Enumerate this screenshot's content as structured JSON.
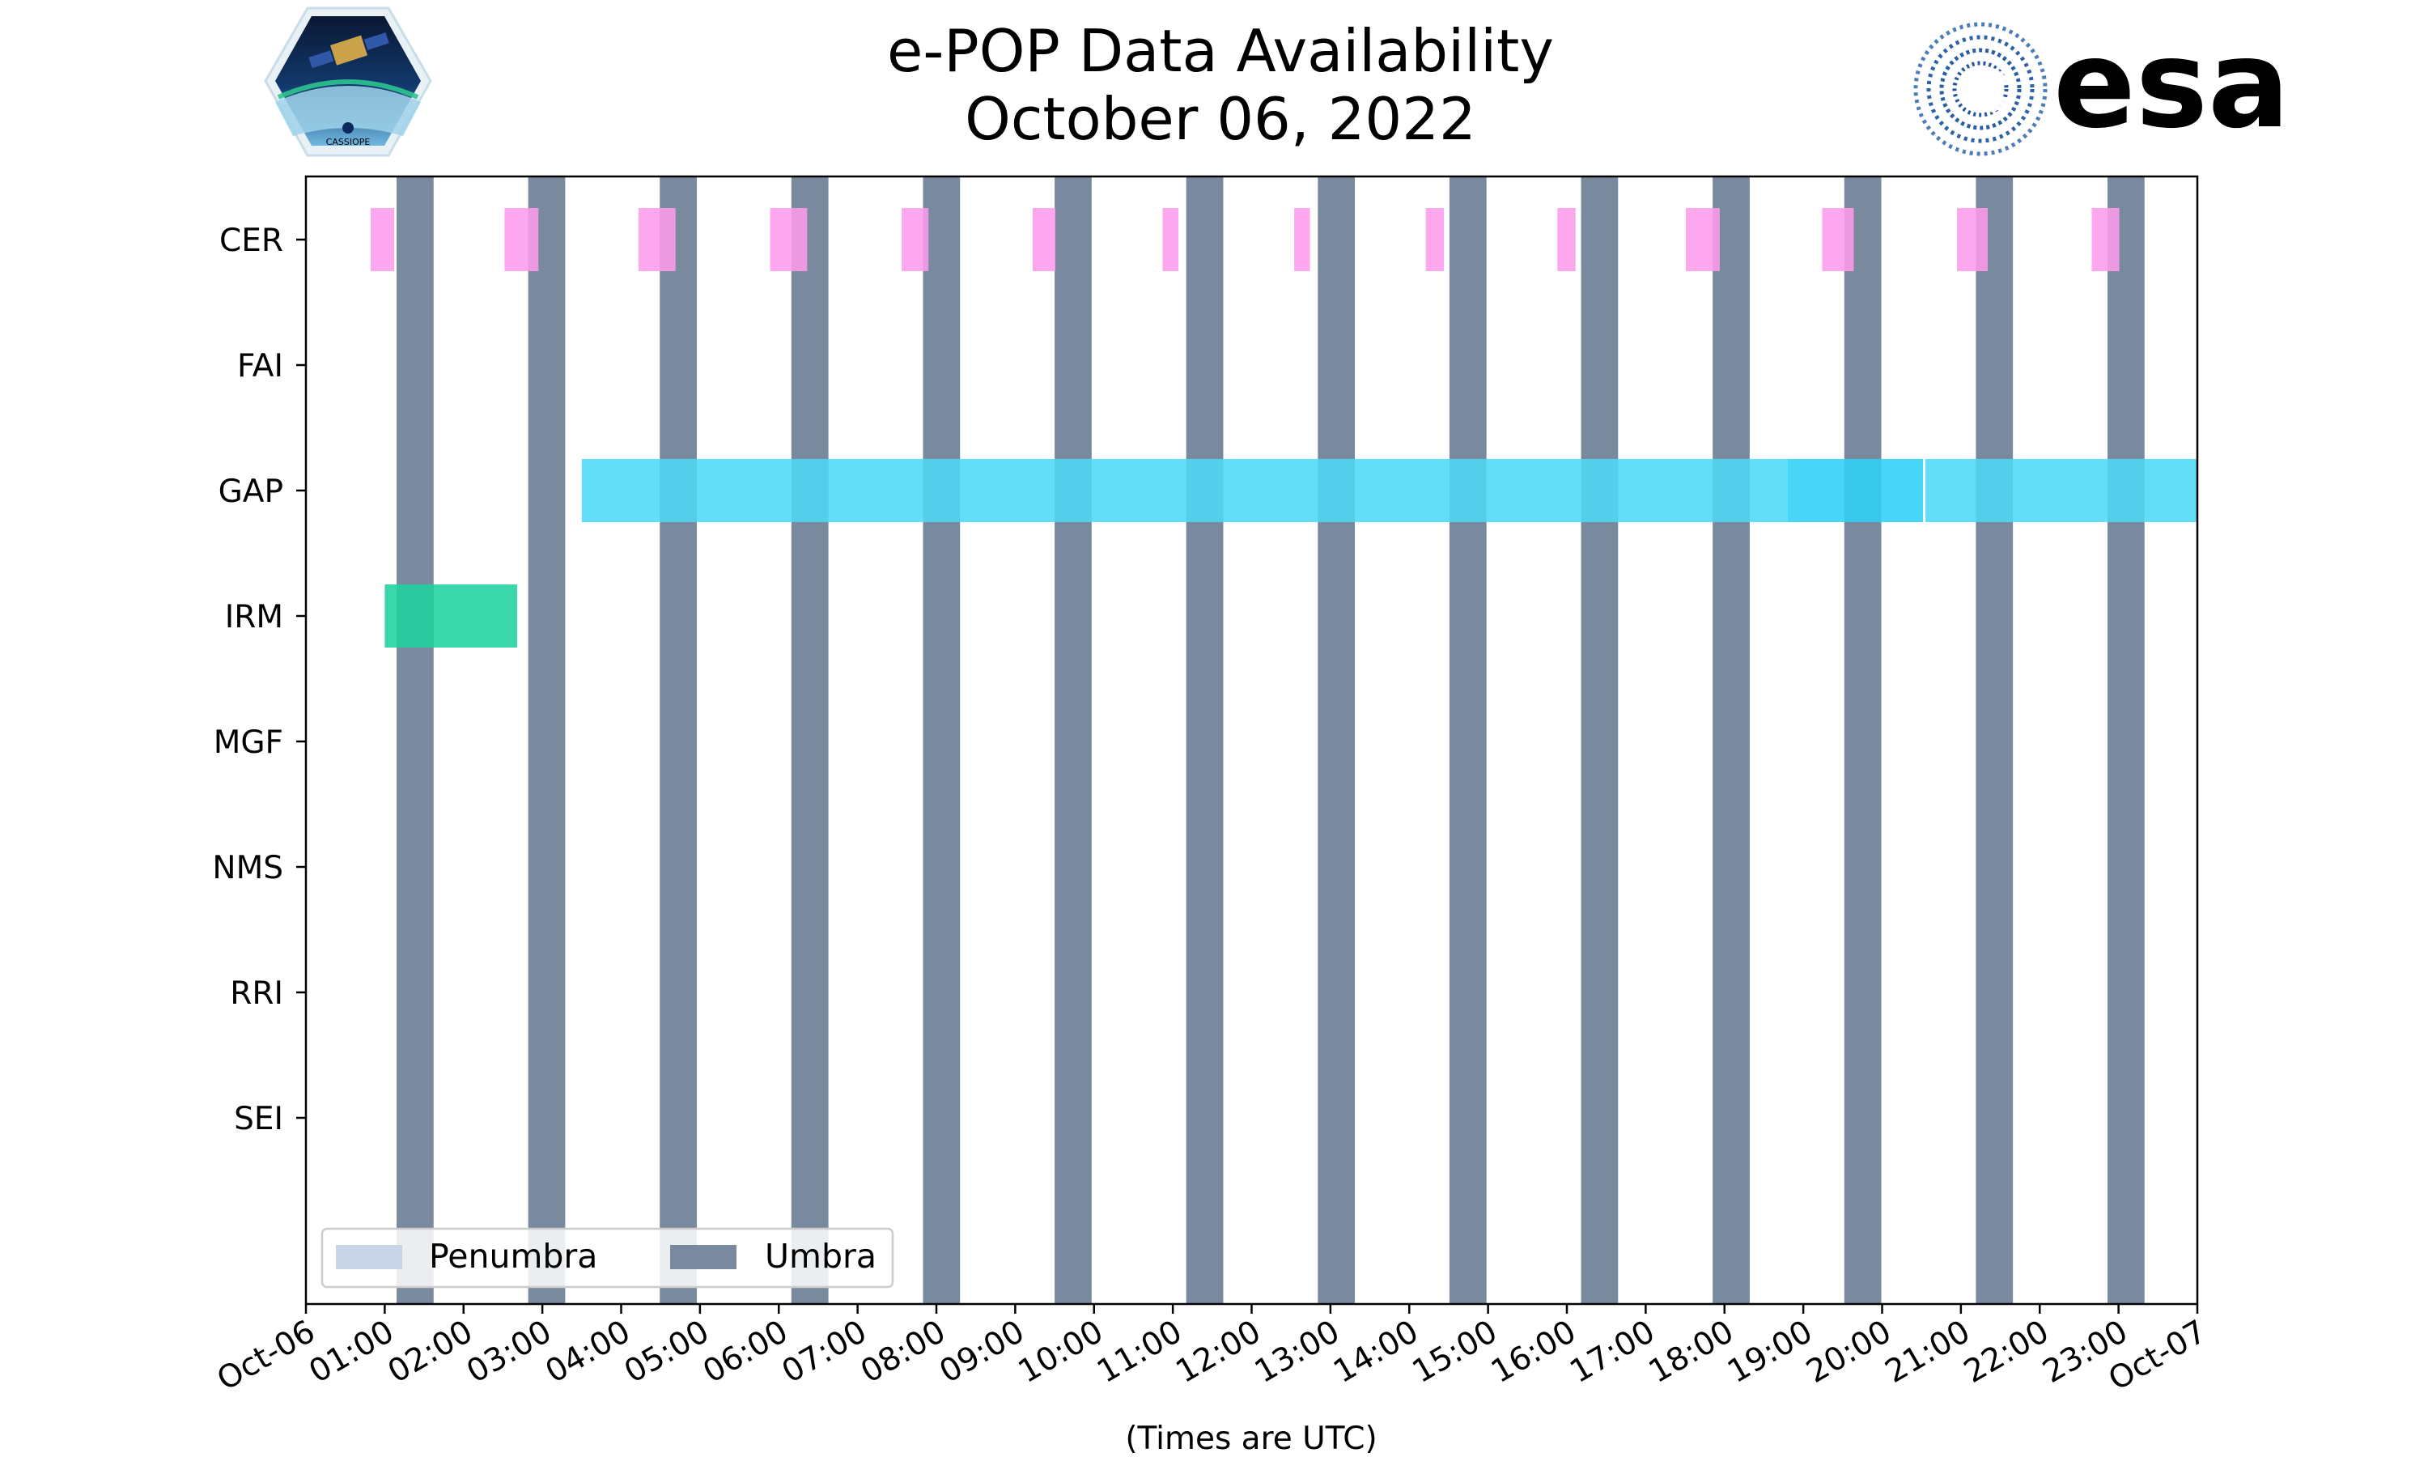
{
  "chart_data": {
    "type": "timeline",
    "title": "e-POP Data Availability",
    "subtitle": "October 06, 2022",
    "xlabel": "(Times are UTC)",
    "ylabel": "",
    "instruments": [
      "CER",
      "FAI",
      "GAP",
      "IRM",
      "MGF",
      "NMS",
      "RRI",
      "SEI"
    ],
    "x_range_hours": [
      0,
      24
    ],
    "x_tick_labels": [
      "Oct-06",
      "01:00",
      "02:00",
      "03:00",
      "04:00",
      "05:00",
      "06:00",
      "07:00",
      "08:00",
      "09:00",
      "10:00",
      "11:00",
      "12:00",
      "13:00",
      "14:00",
      "15:00",
      "16:00",
      "17:00",
      "18:00",
      "19:00",
      "20:00",
      "21:00",
      "22:00",
      "23:00",
      "Oct-07"
    ],
    "umbra_intervals_hours": [
      [
        1.15,
        1.62
      ],
      [
        2.82,
        3.29
      ],
      [
        4.49,
        4.96
      ],
      [
        6.16,
        6.63
      ],
      [
        7.83,
        8.3
      ],
      [
        9.5,
        9.97
      ],
      [
        11.17,
        11.64
      ],
      [
        12.84,
        13.31
      ],
      [
        14.51,
        14.98
      ],
      [
        16.18,
        16.65
      ],
      [
        17.85,
        18.32
      ],
      [
        19.52,
        19.99
      ],
      [
        21.19,
        21.66
      ],
      [
        22.86,
        23.33
      ]
    ],
    "penumbra_intervals_hours": [],
    "data_intervals": [
      {
        "instrument": "CER",
        "color": "#fd9bec",
        "start": 0.82,
        "end": 1.12
      },
      {
        "instrument": "CER",
        "color": "#fd9bec",
        "start": 2.52,
        "end": 2.95
      },
      {
        "instrument": "CER",
        "color": "#fd9bec",
        "start": 4.22,
        "end": 4.69
      },
      {
        "instrument": "CER",
        "color": "#fd9bec",
        "start": 5.89,
        "end": 6.36
      },
      {
        "instrument": "CER",
        "color": "#fd9bec",
        "start": 7.56,
        "end": 7.9
      },
      {
        "instrument": "CER",
        "color": "#fd9bec",
        "start": 9.22,
        "end": 9.51
      },
      {
        "instrument": "CER",
        "color": "#fd9bec",
        "start": 10.87,
        "end": 11.07
      },
      {
        "instrument": "CER",
        "color": "#fd9bec",
        "start": 12.54,
        "end": 12.74
      },
      {
        "instrument": "CER",
        "color": "#fd9bec",
        "start": 14.21,
        "end": 14.44
      },
      {
        "instrument": "CER",
        "color": "#fd9bec",
        "start": 15.88,
        "end": 16.11
      },
      {
        "instrument": "CER",
        "color": "#fd9bec",
        "start": 17.51,
        "end": 17.94
      },
      {
        "instrument": "CER",
        "color": "#fd9bec",
        "start": 19.24,
        "end": 19.64
      },
      {
        "instrument": "CER",
        "color": "#fd9bec",
        "start": 20.95,
        "end": 21.34
      },
      {
        "instrument": "CER",
        "color": "#fd9bec",
        "start": 22.66,
        "end": 23.01
      },
      {
        "instrument": "GAP",
        "color": "#4dd8f7",
        "start": 3.5,
        "end": 18.8
      },
      {
        "instrument": "GAP",
        "color": "#2ed0f6",
        "start": 18.8,
        "end": 20.52
      },
      {
        "instrument": "GAP",
        "color": "#4dd8f7",
        "start": 20.55,
        "end": 24.0
      },
      {
        "instrument": "IRM",
        "color": "#1fd29e",
        "start": 1.0,
        "end": 2.68
      }
    ],
    "legend": [
      {
        "label": "Penumbra",
        "color": "#c7d5e6"
      },
      {
        "label": "Umbra",
        "color": "#7a8a9e"
      }
    ],
    "legend_position": "lower-left",
    "grid": false
  },
  "colors": {
    "umbra": "#7a8a9e",
    "penumbra": "#c7d5e6",
    "cer": "#fd9bec",
    "gap": "#4dd8f7",
    "gap_highlight": "#2ed0f6",
    "irm": "#1fd29e",
    "esa_blue": "#003087"
  },
  "logos": {
    "left": {
      "name": "cassiope-mission-logo",
      "text": "CASSIOPE"
    },
    "right": {
      "name": "esa-logo",
      "text": "esa"
    }
  }
}
